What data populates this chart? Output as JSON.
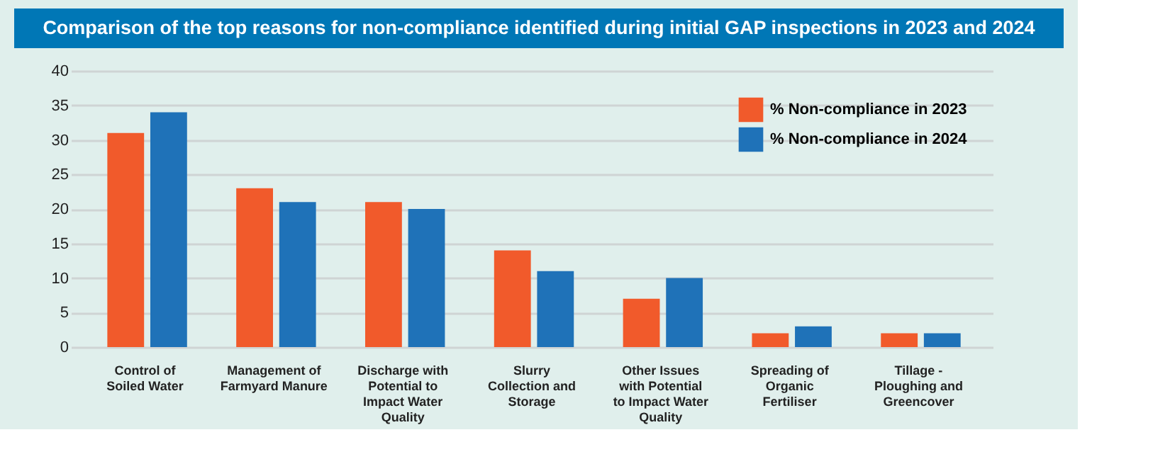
{
  "chart_data": {
    "type": "bar",
    "title": "Comparison of the top reasons for non-compliance identified during initial GAP inspections in 2023 and 2024",
    "categories": [
      "Control of Soiled Water",
      "Management of Farmyard Manure",
      "Discharge with Potential to Impact Water Quality",
      "Slurry Collection and Storage",
      "Other Issues with Potential to Impact Water Quality",
      "Spreading of Organic Fertiliser",
      "Tillage - Ploughing and Greencover"
    ],
    "series": [
      {
        "name": "% Non-compliance in 2023",
        "color": "#f15a2b",
        "values": [
          31,
          23,
          21,
          14,
          7,
          2,
          2
        ]
      },
      {
        "name": "% Non-compliance in 2024",
        "color": "#1f72b8",
        "values": [
          34,
          21,
          20,
          11,
          10,
          3,
          2
        ]
      }
    ],
    "ylim": [
      0,
      40
    ],
    "yticks": [
      0,
      5,
      10,
      15,
      20,
      25,
      30,
      35,
      40
    ],
    "grid": "y",
    "legend": "top right"
  }
}
